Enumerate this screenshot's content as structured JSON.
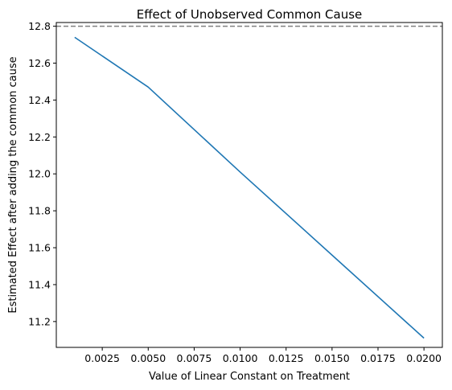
{
  "chart_data": {
    "type": "line",
    "title": "Effect of Unobserved Common Cause",
    "xlabel": "Value of Linear Constant on Treatment",
    "ylabel": "Estimated Effect after adding the common cause",
    "xlim": [
      0.0,
      0.021
    ],
    "ylim": [
      11.06,
      12.82
    ],
    "x_ticks": [
      0.0025,
      0.005,
      0.0075,
      0.01,
      0.0125,
      0.015,
      0.0175,
      0.02
    ],
    "x_tick_labels": [
      "0.0025",
      "0.0050",
      "0.0075",
      "0.0100",
      "0.0125",
      "0.0150",
      "0.0175",
      "0.0200"
    ],
    "y_ticks": [
      11.2,
      11.4,
      11.6,
      11.8,
      12.0,
      12.2,
      12.4,
      12.6,
      12.8
    ],
    "y_tick_labels": [
      "11.2",
      "11.4",
      "11.6",
      "11.8",
      "12.0",
      "12.2",
      "12.4",
      "12.6",
      "12.8"
    ],
    "grid": false,
    "series": [
      {
        "color": "#1f77b4",
        "style": "solid",
        "x": [
          0.001,
          0.005,
          0.01,
          0.015,
          0.02
        ],
        "y": [
          12.74,
          12.47,
          12.01,
          11.56,
          11.11
        ]
      }
    ],
    "reference_line": {
      "y": 12.8,
      "color": "#808080",
      "style": "dashed"
    }
  }
}
